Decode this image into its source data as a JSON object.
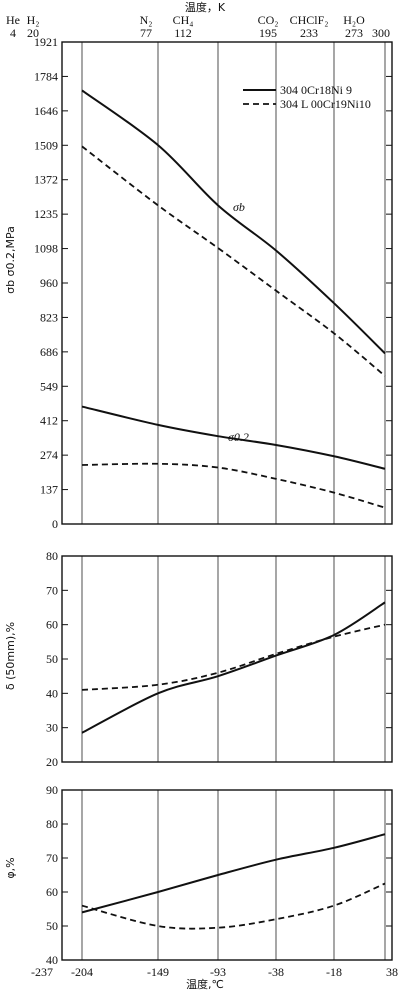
{
  "top_axis": {
    "title": "温度，K",
    "substances": [
      "He",
      "H₂",
      "N₂",
      "CH₄",
      "CO₂",
      "CHClF₂",
      "H₂O"
    ],
    "kelvin": [
      "4",
      "20",
      "77",
      "112",
      "195",
      "233",
      "273",
      "300"
    ]
  },
  "bottom_axis": {
    "title": "温度,℃",
    "ticks": [
      "-237",
      "-204",
      "-149",
      "-93",
      "-38",
      "-18",
      "38"
    ]
  },
  "chart_data": [
    {
      "type": "line",
      "ylabel": "σb σ0.2,MPa",
      "ylim": [
        0,
        1921
      ],
      "yticks": [
        "1921",
        "1784",
        "1646",
        "1509",
        "1372",
        "1235",
        "1098",
        "960",
        "823",
        "686",
        "549",
        "412",
        "274",
        "137",
        "0"
      ],
      "legend": {
        "placement": "top-right",
        "entries": [
          "304   0Cr18Ni 9",
          "304 L 00Cr19Ni10"
        ]
      },
      "annotations": [
        "σb",
        "σ0.2"
      ],
      "series": [
        {
          "name": "304   0Cr18Ni 9",
          "label": "σb",
          "style": "solid",
          "x": [
            "-204",
            "-149",
            "-93",
            "-38",
            "-18",
            "38"
          ],
          "values": [
            1728,
            1510,
            1270,
            1090,
            880,
            680
          ]
        },
        {
          "name": "304 L 00Cr19Ni10",
          "label": "σb",
          "style": "dashed",
          "x": [
            "-204",
            "-149",
            "-93",
            "-38",
            "-18",
            "38"
          ],
          "values": [
            1505,
            1270,
            1100,
            930,
            760,
            590
          ]
        },
        {
          "name": "304   0Cr18Ni 9",
          "label": "σ0.2",
          "style": "solid",
          "x": [
            "-204",
            "-149",
            "-93",
            "-38",
            "-18",
            "38"
          ],
          "values": [
            468,
            395,
            350,
            315,
            270,
            220
          ]
        },
        {
          "name": "304 L 00Cr19Ni10",
          "label": "σ0.2",
          "style": "dashed",
          "x": [
            "-204",
            "-149",
            "-93",
            "-38",
            "-18",
            "38"
          ],
          "values": [
            235,
            240,
            225,
            180,
            125,
            65
          ]
        }
      ]
    },
    {
      "type": "line",
      "ylabel": "δ (50mm),%",
      "ylim": [
        20,
        80
      ],
      "yticks": [
        "80",
        "70",
        "60",
        "50",
        "40",
        "30",
        "20"
      ],
      "series": [
        {
          "name": "304   0Cr18Ni 9",
          "style": "solid",
          "x": [
            "-204",
            "-149",
            "-93",
            "-38",
            "-18",
            "38"
          ],
          "values": [
            28.5,
            40,
            45,
            51,
            57,
            66.5
          ]
        },
        {
          "name": "304 L 00Cr19Ni10",
          "style": "dashed",
          "x": [
            "-204",
            "-149",
            "-93",
            "-38",
            "-18",
            "38"
          ],
          "values": [
            41,
            42.5,
            46,
            51.5,
            56.5,
            60
          ]
        }
      ]
    },
    {
      "type": "line",
      "ylabel": "φ,%",
      "ylim": [
        40,
        90
      ],
      "yticks": [
        "90",
        "80",
        "70",
        "60",
        "50",
        "40"
      ],
      "series": [
        {
          "name": "304   0Cr18Ni 9",
          "style": "solid",
          "x": [
            "-204",
            "-149",
            "-93",
            "-38",
            "-18",
            "38"
          ],
          "values": [
            54,
            60,
            65,
            69.5,
            73,
            77
          ]
        },
        {
          "name": "304 L 00Cr19Ni10",
          "style": "dashed",
          "x": [
            "-204",
            "-149",
            "-93",
            "-38",
            "-18",
            "38"
          ],
          "values": [
            56,
            50,
            49.5,
            52,
            56,
            62.5
          ]
        }
      ]
    }
  ]
}
